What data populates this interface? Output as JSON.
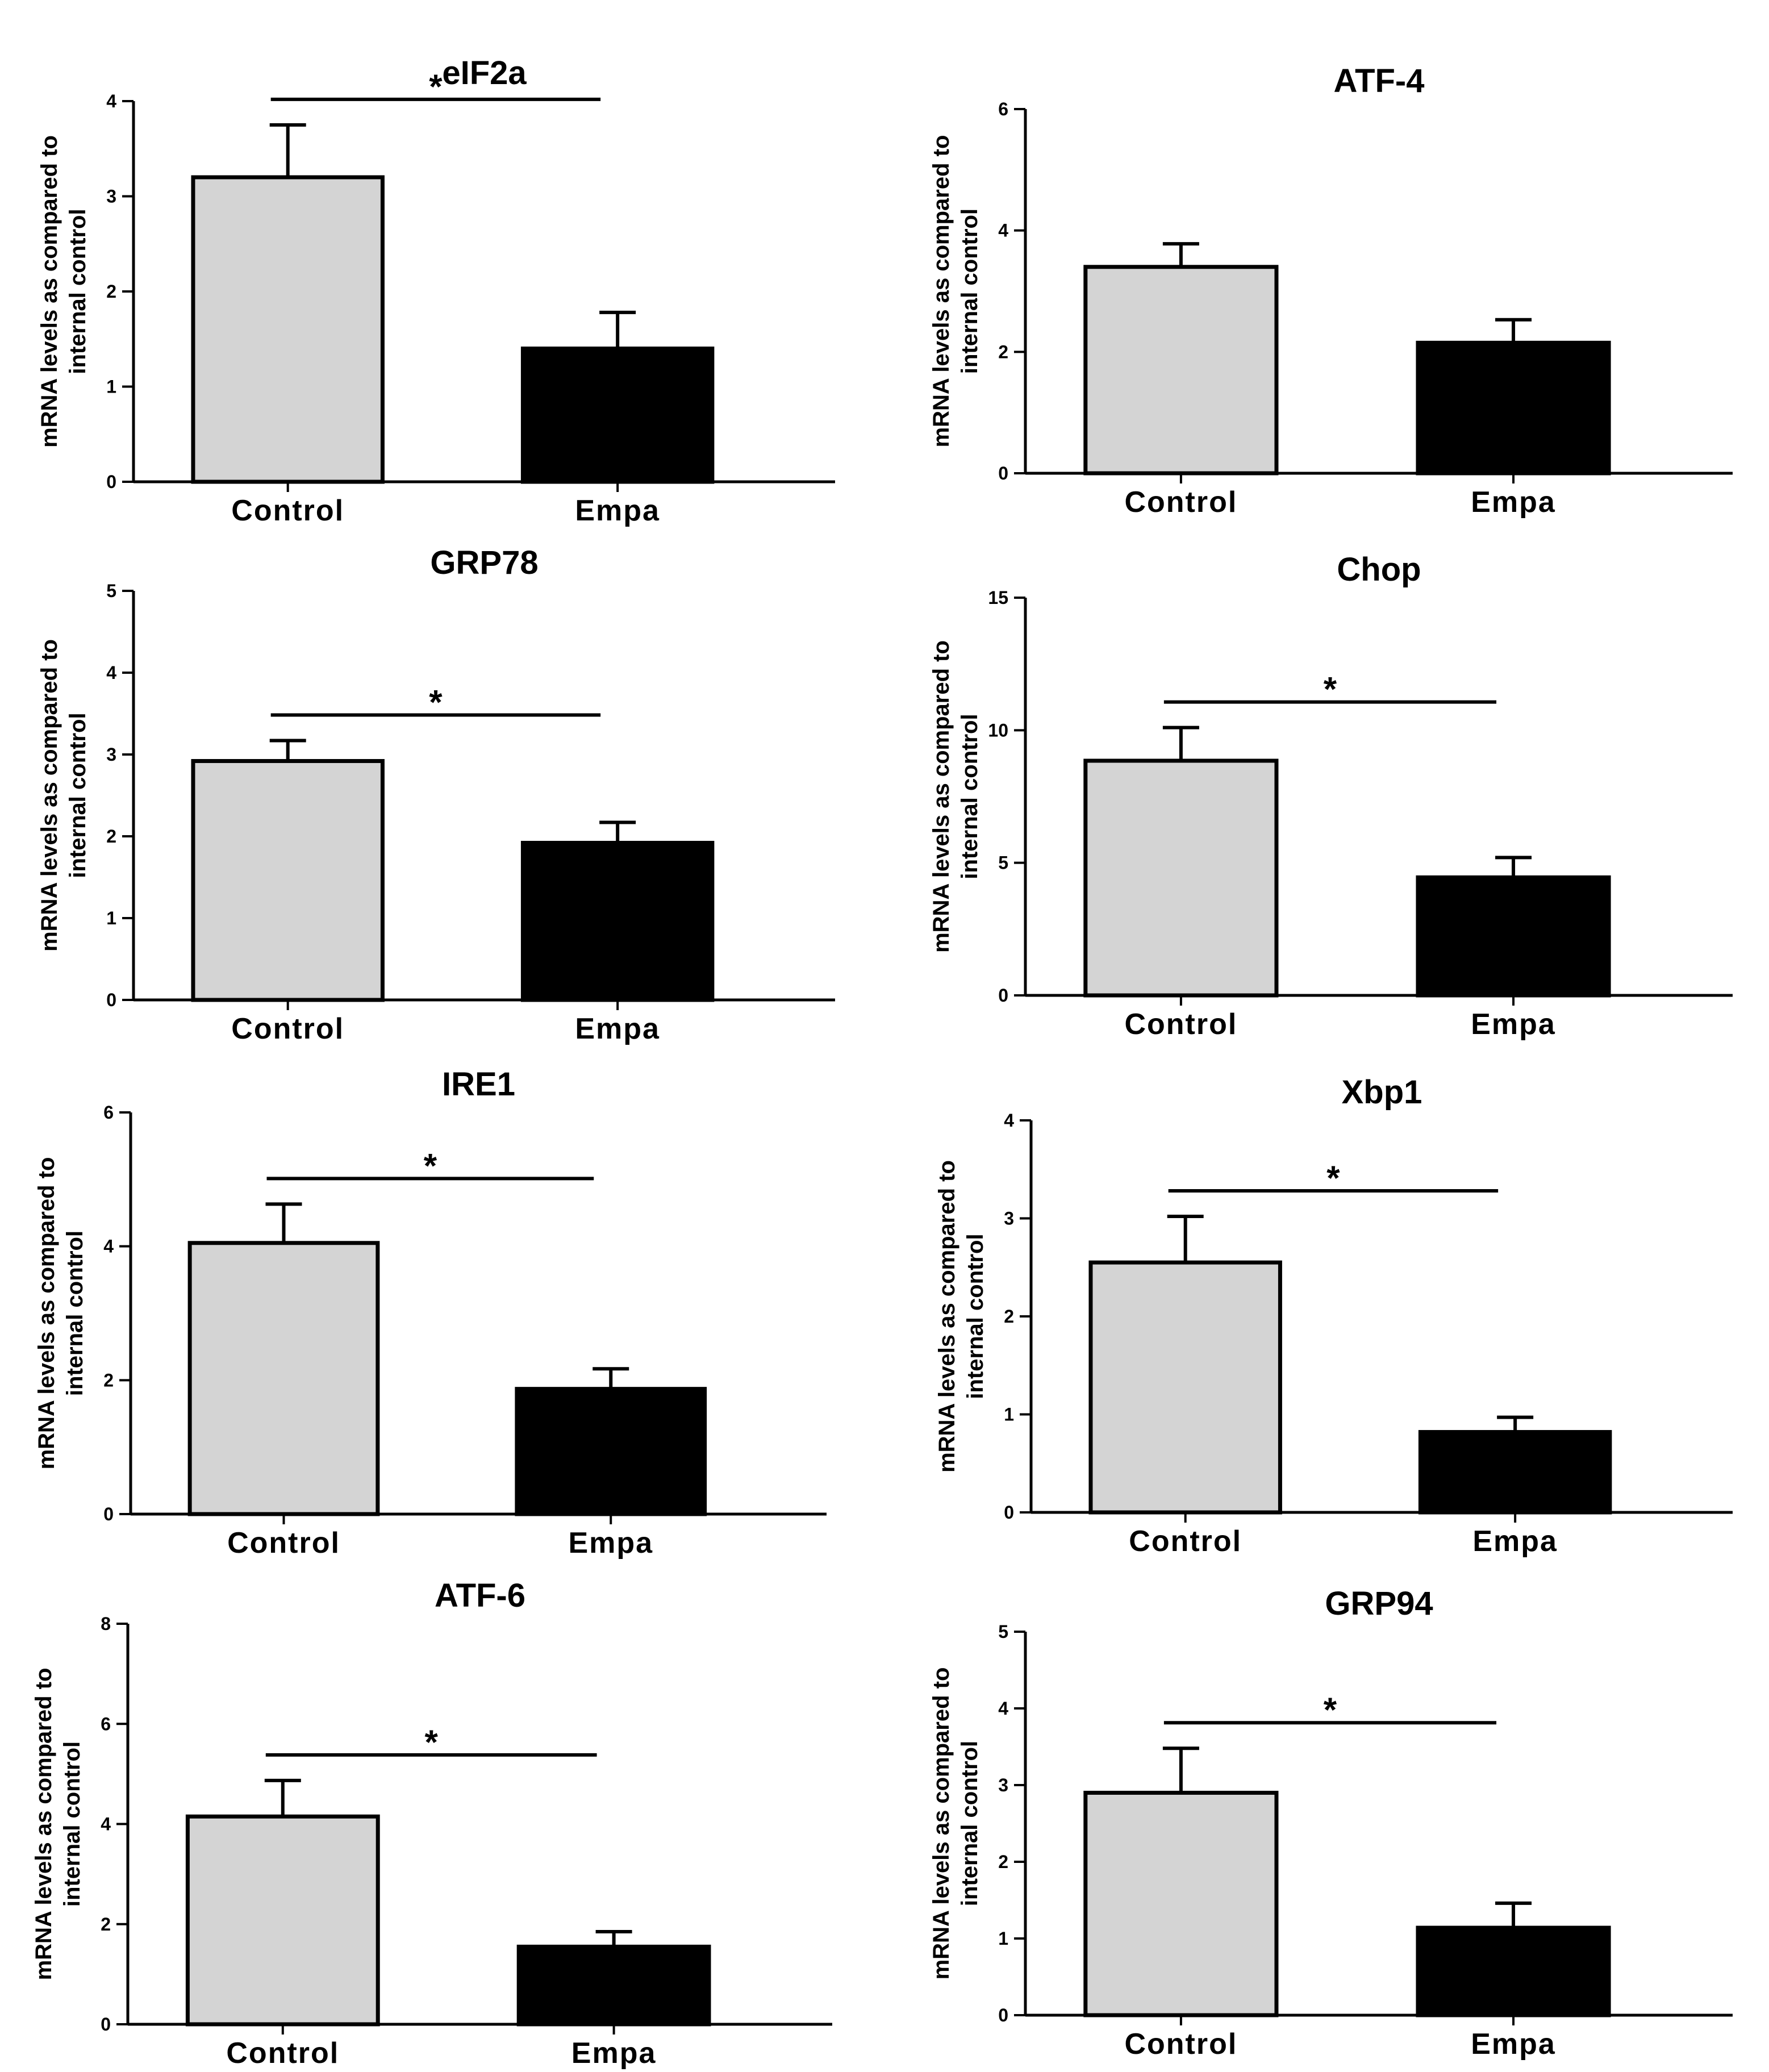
{
  "figure": {
    "bar_colors": {
      "Control": "#d4d4d4",
      "Empa": "#000000"
    },
    "axis_color": "#000000"
  },
  "chart_data": [
    {
      "type": "bar",
      "title": "eIF2a",
      "categories": [
        "Control",
        "Empa"
      ],
      "values": [
        3.2,
        1.4
      ],
      "errors": [
        0.55,
        0.38
      ],
      "ylabel_lines": [
        "mRNA levels as compared to",
        "internal control"
      ],
      "ylim": [
        0,
        4
      ],
      "yticks": [
        0,
        1,
        2,
        3,
        4
      ],
      "significant": true,
      "significance_label": "*"
    },
    {
      "type": "bar",
      "title": "ATF-4",
      "categories": [
        "Control",
        "Empa"
      ],
      "values": [
        3.4,
        2.15
      ],
      "errors": [
        0.38,
        0.38
      ],
      "ylabel_lines": [
        "mRNA levels as compared to",
        "internal control"
      ],
      "ylim": [
        0,
        6
      ],
      "yticks": [
        0,
        2,
        4,
        6
      ],
      "significant": false,
      "significance_label": ""
    },
    {
      "type": "bar",
      "title": "GRP78",
      "categories": [
        "Control",
        "Empa"
      ],
      "values": [
        2.92,
        1.92
      ],
      "errors": [
        0.25,
        0.25
      ],
      "ylabel_lines": [
        "mRNA levels as compared to",
        "internal control"
      ],
      "ylim": [
        0,
        5
      ],
      "yticks": [
        0,
        1,
        2,
        3,
        4,
        5
      ],
      "significant": true,
      "significance_label": "*"
    },
    {
      "type": "bar",
      "title": "Chop",
      "categories": [
        "Control",
        "Empa"
      ],
      "values": [
        8.85,
        4.45
      ],
      "errors": [
        1.25,
        0.75
      ],
      "ylabel_lines": [
        "mRNA levels as compared to",
        "internal control"
      ],
      "ylim": [
        0,
        15
      ],
      "yticks": [
        0,
        5,
        10,
        15
      ],
      "significant": true,
      "significance_label": "*"
    },
    {
      "type": "bar",
      "title": "IRE1",
      "categories": [
        "Control",
        "Empa"
      ],
      "values": [
        4.05,
        1.87
      ],
      "errors": [
        0.58,
        0.3
      ],
      "ylabel_lines": [
        "mRNA levels as compared to",
        "internal control"
      ],
      "ylim": [
        0,
        6
      ],
      "yticks": [
        0,
        2,
        4,
        6
      ],
      "significant": true,
      "significance_label": "*"
    },
    {
      "type": "bar",
      "title": "Xbp1",
      "categories": [
        "Control",
        "Empa"
      ],
      "values": [
        2.55,
        0.82
      ],
      "errors": [
        0.47,
        0.15
      ],
      "ylabel_lines": [
        "mRNA levels as compared to",
        "internal control"
      ],
      "ylim": [
        0,
        4
      ],
      "yticks": [
        0,
        1,
        2,
        3,
        4
      ],
      "significant": true,
      "significance_label": "*"
    },
    {
      "type": "bar",
      "title": "ATF-6",
      "categories": [
        "Control",
        "Empa"
      ],
      "values": [
        4.15,
        1.55
      ],
      "errors": [
        0.72,
        0.3
      ],
      "ylabel_lines": [
        "mRNA levels as compared to",
        "internal control"
      ],
      "ylim": [
        0,
        8
      ],
      "yticks": [
        0,
        2,
        4,
        6,
        8
      ],
      "significant": true,
      "significance_label": "*"
    },
    {
      "type": "bar",
      "title": "GRP94",
      "categories": [
        "Control",
        "Empa"
      ],
      "values": [
        2.9,
        1.14
      ],
      "errors": [
        0.58,
        0.32
      ],
      "ylabel_lines": [
        "mRNA levels as compared to",
        "internal control"
      ],
      "ylim": [
        0,
        5
      ],
      "yticks": [
        0,
        1,
        2,
        3,
        4,
        5
      ],
      "significant": true,
      "significance_label": "*"
    }
  ]
}
